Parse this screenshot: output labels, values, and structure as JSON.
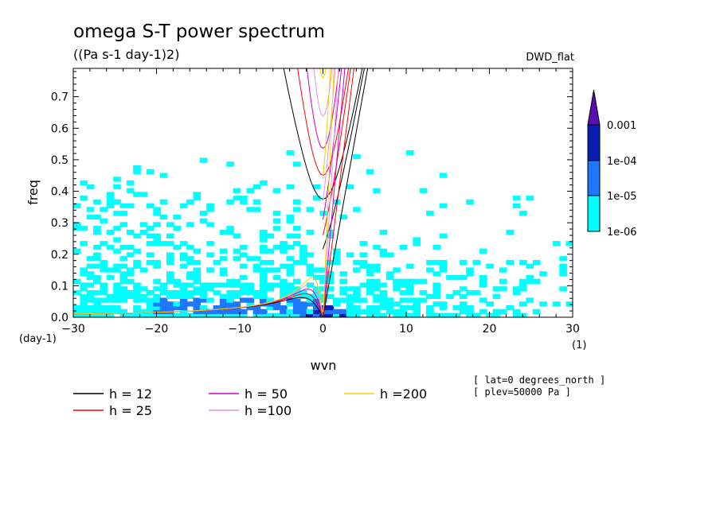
{
  "chart_data": {
    "type": "line",
    "title": "omega S-T power spectrum",
    "subtitle": "((Pa s-1 day-1)2)",
    "model_label": "DWD_flat",
    "xlabel": "wvn",
    "ylabel": "freq",
    "x_unit": "(1)",
    "y_unit": "(day-1)",
    "xlim": [
      -30,
      30
    ],
    "ylim": [
      0,
      0.79
    ],
    "x_ticks": [
      "−30",
      "−20",
      "−10",
      "0",
      "10",
      "20",
      "30"
    ],
    "x_tick_values": [
      -30,
      -20,
      -10,
      0,
      10,
      20,
      30
    ],
    "y_ticks": [
      "0.0",
      "0.1",
      "0.2",
      "0.3",
      "0.4",
      "0.5",
      "0.6",
      "0.7"
    ],
    "y_tick_values": [
      0,
      0.1,
      0.2,
      0.3,
      0.4,
      0.5,
      0.6,
      0.7
    ],
    "colorbar": {
      "labels": [
        "0.001",
        "1e-04",
        "1e-05",
        "1e-06"
      ],
      "levels": [
        0.001,
        0.0001,
        1e-05,
        1e-06
      ],
      "colors": [
        "#5a0fb4",
        "#0a1eb4",
        "#1e78ff",
        "#00ffff"
      ]
    },
    "dispersion_curves": [
      {
        "name": "h = 12",
        "h": 12,
        "color": "#000000"
      },
      {
        "name": "h = 25",
        "h": 25,
        "color": "#ff0000"
      },
      {
        "name": "h = 50",
        "h": 50,
        "color": "#cc00cc"
      },
      {
        "name": "h =100",
        "h": 100,
        "color": "#dd99dd"
      },
      {
        "name": "h =200",
        "h": 200,
        "color": "#ffcc00"
      }
    ],
    "info": [
      "[ lat=0 degrees_north ]",
      "[ plev=50000 Pa ]"
    ]
  }
}
